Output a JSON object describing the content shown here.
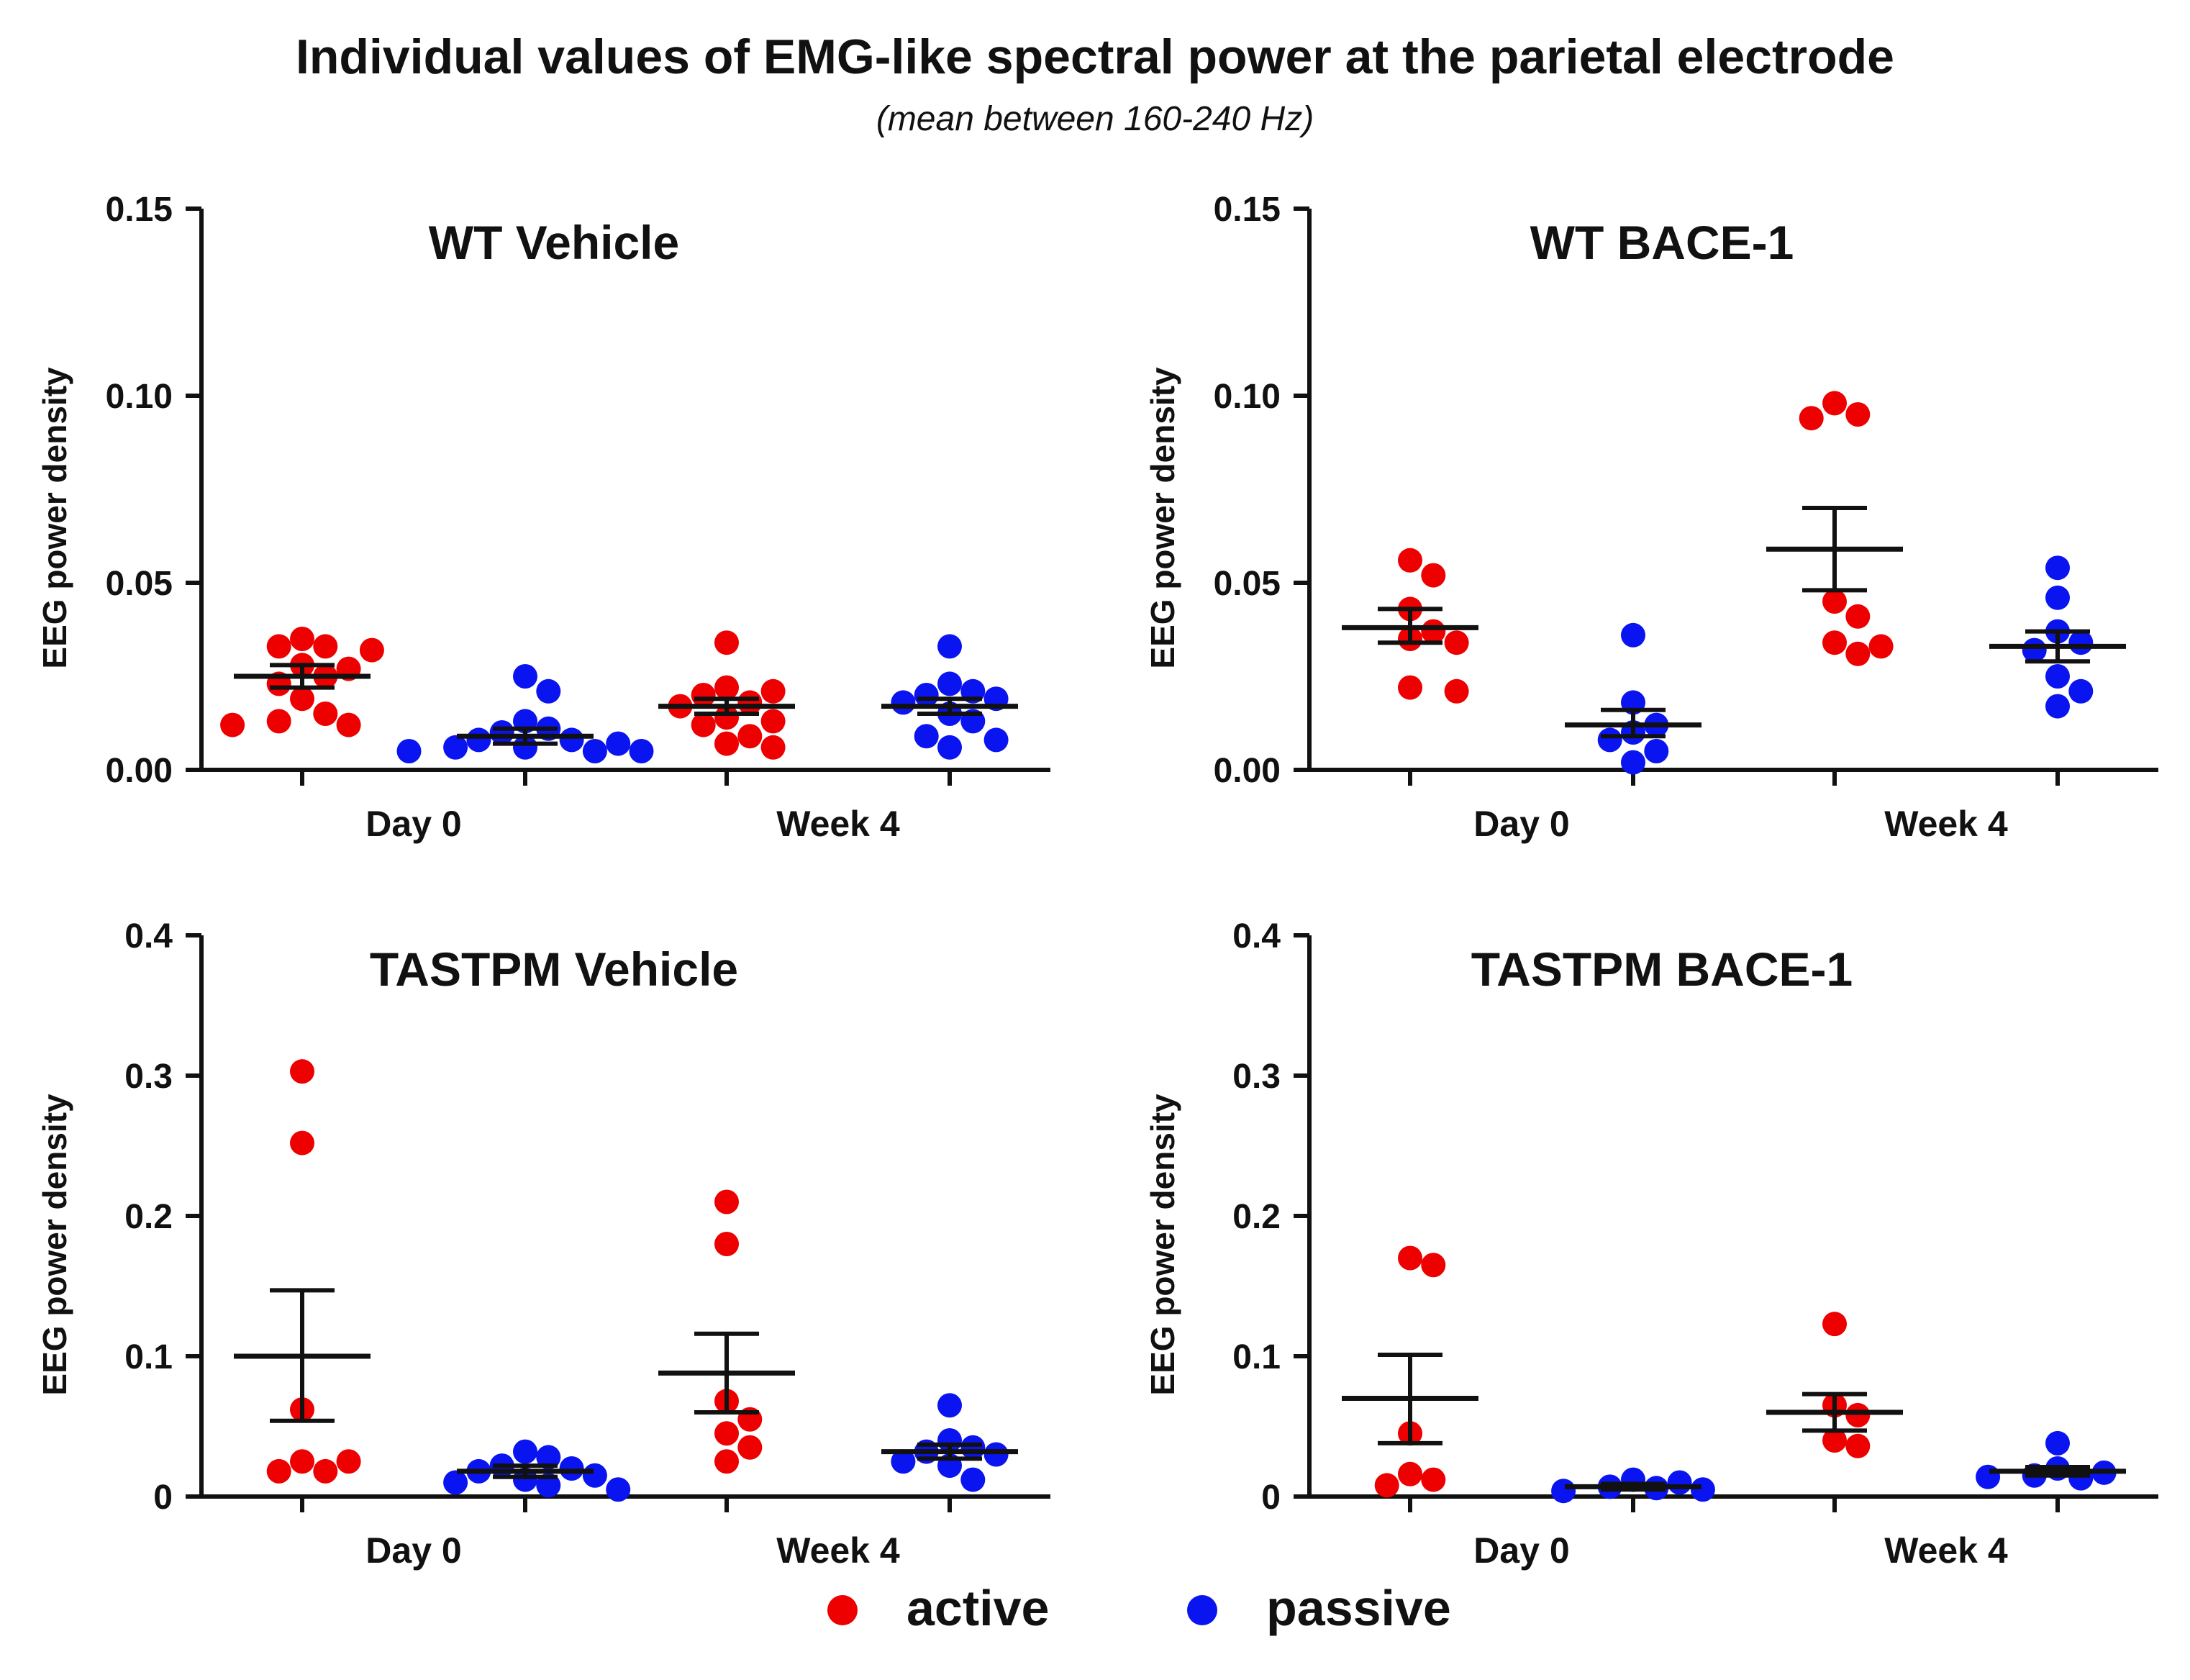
{
  "title": "Individual values of EMG-like spectral power at the parietal electrode",
  "subtitle": "(mean between 160-240 Hz)",
  "colors": {
    "active": "#ee0000",
    "passive": "#0a14f0",
    "axis": "#111111"
  },
  "legend": [
    {
      "name": "active",
      "label": "active"
    },
    {
      "name": "passive",
      "label": "passive"
    }
  ],
  "chart_data": [
    {
      "type": "scatter",
      "title": "WT Vehicle",
      "ylabel": "EEG power density",
      "ylim": [
        0,
        0.15
      ],
      "yticks": [
        0,
        0.05,
        0.1,
        0.15
      ],
      "ytick_labels": [
        "0.00",
        "0.05",
        "0.10",
        "0.15"
      ],
      "categories": [
        "Day 0",
        "Week 4"
      ],
      "groups": [
        {
          "category": "Day 0",
          "series": "active",
          "mean": 0.025,
          "sem_low": 0.022,
          "sem_high": 0.028,
          "values": [
            0.035,
            0.033,
            0.033,
            0.032,
            0.028,
            0.027,
            0.025,
            0.023,
            0.019,
            0.015,
            0.013,
            0.012,
            0.012
          ]
        },
        {
          "category": "Day 0",
          "series": "passive",
          "mean": 0.009,
          "sem_low": 0.007,
          "sem_high": 0.011,
          "values": [
            0.025,
            0.021,
            0.013,
            0.011,
            0.01,
            0.008,
            0.008,
            0.007,
            0.006,
            0.006,
            0.005,
            0.005,
            0.005
          ]
        },
        {
          "category": "Week 4",
          "series": "active",
          "mean": 0.017,
          "sem_low": 0.015,
          "sem_high": 0.019,
          "values": [
            0.034,
            0.022,
            0.021,
            0.02,
            0.018,
            0.017,
            0.014,
            0.013,
            0.012,
            0.009,
            0.007,
            0.006
          ]
        },
        {
          "category": "Week 4",
          "series": "passive",
          "mean": 0.017,
          "sem_low": 0.015,
          "sem_high": 0.019,
          "values": [
            0.033,
            0.023,
            0.021,
            0.02,
            0.019,
            0.018,
            0.015,
            0.013,
            0.009,
            0.008,
            0.006
          ]
        }
      ]
    },
    {
      "type": "scatter",
      "title": "WT BACE-1",
      "ylabel": "EEG power density",
      "ylim": [
        0,
        0.15
      ],
      "yticks": [
        0,
        0.05,
        0.1,
        0.15
      ],
      "ytick_labels": [
        "0.00",
        "0.05",
        "0.10",
        "0.15"
      ],
      "categories": [
        "Day 0",
        "Week 4"
      ],
      "groups": [
        {
          "category": "Day 0",
          "series": "active",
          "mean": 0.038,
          "sem_low": 0.034,
          "sem_high": 0.043,
          "values": [
            0.056,
            0.052,
            0.043,
            0.037,
            0.035,
            0.034,
            0.022,
            0.021
          ]
        },
        {
          "category": "Day 0",
          "series": "passive",
          "mean": 0.012,
          "sem_low": 0.009,
          "sem_high": 0.016,
          "values": [
            0.036,
            0.018,
            0.012,
            0.01,
            0.008,
            0.005,
            0.002
          ]
        },
        {
          "category": "Week 4",
          "series": "active",
          "mean": 0.059,
          "sem_low": 0.048,
          "sem_high": 0.07,
          "values": [
            0.098,
            0.095,
            0.094,
            0.045,
            0.041,
            0.034,
            0.033,
            0.031
          ]
        },
        {
          "category": "Week 4",
          "series": "passive",
          "mean": 0.033,
          "sem_low": 0.029,
          "sem_high": 0.037,
          "values": [
            0.054,
            0.046,
            0.037,
            0.034,
            0.032,
            0.025,
            0.021,
            0.017
          ]
        }
      ]
    },
    {
      "type": "scatter",
      "title": "TASTPM Vehicle",
      "ylabel": "EEG power density",
      "ylim": [
        0,
        0.4
      ],
      "yticks": [
        0,
        0.1,
        0.2,
        0.3,
        0.4
      ],
      "ytick_labels": [
        "0",
        "0.1",
        "0.2",
        "0.3",
        "0.4"
      ],
      "categories": [
        "Day 0",
        "Week 4"
      ],
      "groups": [
        {
          "category": "Day 0",
          "series": "active",
          "mean": 0.1,
          "sem_low": 0.054,
          "sem_high": 0.147,
          "values": [
            0.303,
            0.252,
            0.062,
            0.025,
            0.025,
            0.018,
            0.018
          ]
        },
        {
          "category": "Day 0",
          "series": "passive",
          "mean": 0.018,
          "sem_low": 0.014,
          "sem_high": 0.022,
          "values": [
            0.032,
            0.028,
            0.022,
            0.02,
            0.018,
            0.015,
            0.012,
            0.01,
            0.008,
            0.005
          ]
        },
        {
          "category": "Week 4",
          "series": "active",
          "mean": 0.088,
          "sem_low": 0.06,
          "sem_high": 0.116,
          "values": [
            0.21,
            0.18,
            0.068,
            0.055,
            0.045,
            0.035,
            0.025
          ]
        },
        {
          "category": "Week 4",
          "series": "passive",
          "mean": 0.032,
          "sem_low": 0.027,
          "sem_high": 0.037,
          "values": [
            0.065,
            0.04,
            0.035,
            0.032,
            0.03,
            0.025,
            0.022,
            0.012
          ]
        }
      ]
    },
    {
      "type": "scatter",
      "title": "TASTPM BACE-1",
      "ylabel": "EEG power density",
      "ylim": [
        0,
        0.4
      ],
      "yticks": [
        0,
        0.1,
        0.2,
        0.3,
        0.4
      ],
      "ytick_labels": [
        "0",
        "0.1",
        "0.2",
        "0.3",
        "0.4"
      ],
      "categories": [
        "Day 0",
        "Week 4"
      ],
      "groups": [
        {
          "category": "Day 0",
          "series": "active",
          "mean": 0.07,
          "sem_low": 0.038,
          "sem_high": 0.101,
          "values": [
            0.17,
            0.165,
            0.045,
            0.016,
            0.012,
            0.008
          ]
        },
        {
          "category": "Day 0",
          "series": "passive",
          "mean": 0.007,
          "sem_low": 0.005,
          "sem_high": 0.009,
          "values": [
            0.012,
            0.01,
            0.007,
            0.006,
            0.005,
            0.004
          ]
        },
        {
          "category": "Week 4",
          "series": "active",
          "mean": 0.06,
          "sem_low": 0.047,
          "sem_high": 0.073,
          "values": [
            0.123,
            0.065,
            0.058,
            0.04,
            0.036
          ]
        },
        {
          "category": "Week 4",
          "series": "passive",
          "mean": 0.018,
          "sem_low": 0.015,
          "sem_high": 0.021,
          "values": [
            0.038,
            0.02,
            0.017,
            0.015,
            0.014,
            0.013
          ]
        }
      ]
    }
  ]
}
